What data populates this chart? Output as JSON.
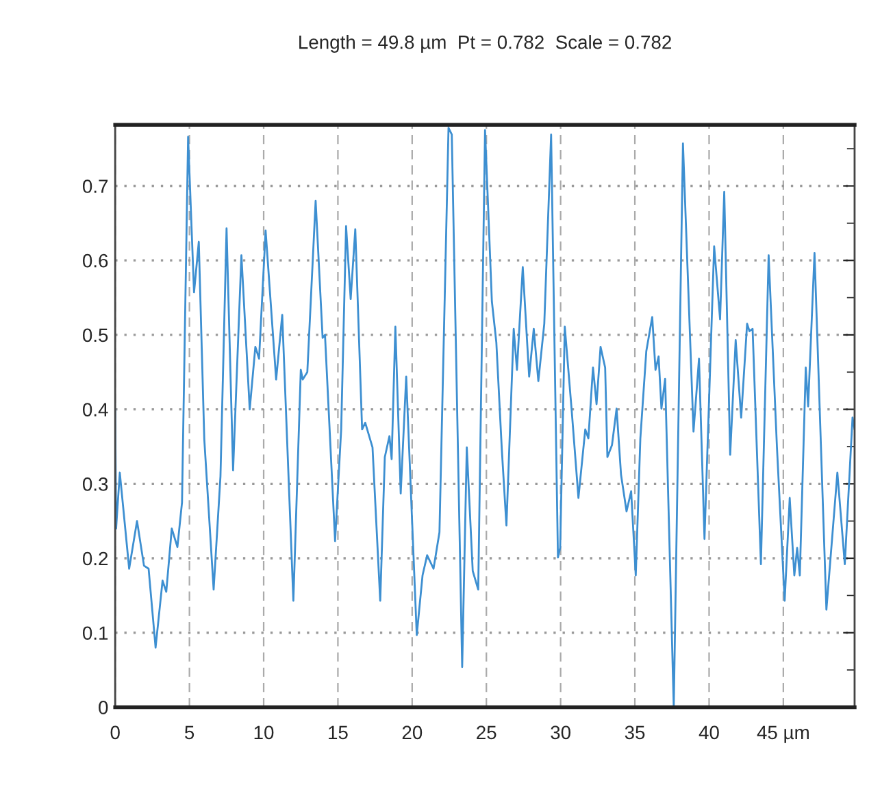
{
  "chart_data": {
    "type": "line",
    "title": "Length = 49.8 µm  Pt = 0.782  Scale = 0.782",
    "series": [
      {
        "color": "#3d8fd1",
        "x": [
          0,
          0.06,
          0.31,
          0.53,
          0.94,
          1.47,
          1.94,
          2.25,
          2.72,
          3.19,
          3.44,
          3.81,
          4.19,
          4.5,
          4.91,
          5.31,
          5.63,
          6.0,
          6.63,
          7.09,
          7.5,
          7.94,
          8.5,
          9.06,
          9.44,
          9.69,
          10.13,
          10.84,
          11.25,
          12.0,
          12.5,
          12.63,
          12.94,
          13.5,
          13.97,
          14.13,
          14.81,
          15.22,
          15.55,
          15.86,
          16.17,
          16.63,
          16.84,
          17.33,
          17.85,
          18.16,
          18.47,
          18.62,
          18.87,
          19.23,
          19.6,
          20.31,
          20.7,
          21.01,
          21.44,
          21.84,
          22.45,
          22.67,
          23.37,
          23.68,
          24.08,
          24.45,
          24.91,
          25.37,
          25.67,
          26.04,
          26.35,
          26.84,
          27.06,
          27.45,
          27.88,
          28.19,
          28.5,
          28.9,
          29.36,
          29.82,
          29.97,
          30.28,
          30.74,
          31.2,
          31.66,
          31.87,
          32.18,
          32.42,
          32.69,
          33.0,
          33.15,
          33.46,
          33.77,
          34.07,
          34.44,
          34.75,
          35.06,
          35.37,
          35.77,
          36.17,
          36.39,
          36.6,
          36.79,
          37.04,
          37.62,
          38.24,
          38.95,
          39.32,
          39.69,
          40.34,
          40.74,
          41.02,
          41.42,
          41.79,
          42.16,
          42.56,
          42.72,
          42.93,
          43.49,
          44.01,
          44.57,
          45.09,
          45.43,
          45.74,
          45.93,
          46.11,
          46.51,
          46.67,
          47.1,
          47.9,
          48.64,
          49.14,
          49.66,
          49.8
        ],
        "values": [
          0.4,
          0.24,
          0.315,
          0.27,
          0.186,
          0.25,
          0.19,
          0.186,
          0.08,
          0.17,
          0.155,
          0.24,
          0.215,
          0.275,
          0.766,
          0.557,
          0.625,
          0.36,
          0.158,
          0.31,
          0.643,
          0.318,
          0.607,
          0.4,
          0.484,
          0.468,
          0.64,
          0.44,
          0.527,
          0.143,
          0.453,
          0.44,
          0.45,
          0.68,
          0.496,
          0.5,
          0.223,
          0.373,
          0.646,
          0.548,
          0.642,
          0.373,
          0.382,
          0.349,
          0.143,
          0.336,
          0.364,
          0.333,
          0.511,
          0.287,
          0.444,
          0.097,
          0.177,
          0.204,
          0.186,
          0.235,
          0.778,
          0.769,
          0.054,
          0.349,
          0.183,
          0.158,
          0.775,
          0.545,
          0.49,
          0.346,
          0.244,
          0.508,
          0.453,
          0.591,
          0.444,
          0.508,
          0.438,
          0.515,
          0.769,
          0.201,
          0.214,
          0.511,
          0.4,
          0.281,
          0.373,
          0.361,
          0.456,
          0.407,
          0.484,
          0.456,
          0.336,
          0.352,
          0.401,
          0.312,
          0.263,
          0.29,
          0.177,
          0.361,
          0.478,
          0.524,
          0.453,
          0.471,
          0.401,
          0.441,
          0.0,
          0.757,
          0.37,
          0.468,
          0.226,
          0.619,
          0.521,
          0.692,
          0.339,
          0.493,
          0.389,
          0.515,
          0.505,
          0.508,
          0.192,
          0.607,
          0.349,
          0.143,
          0.281,
          0.177,
          0.214,
          0.177,
          0.456,
          0.404,
          0.61,
          0.131,
          0.315,
          0.192,
          0.389,
          0.373
        ]
      }
    ],
    "xlim": [
      0,
      49.8
    ],
    "xticks": [
      0,
      5,
      10,
      15,
      20,
      25,
      30,
      35,
      40,
      {
        "value": 45,
        "label": "45 µm"
      }
    ],
    "ylim": [
      0,
      0.782
    ],
    "yticks": [
      0,
      0.1,
      0.2,
      0.3,
      0.4,
      0.5,
      0.6,
      0.7
    ],
    "grid": true,
    "marker": "none",
    "line_style": "solid"
  }
}
